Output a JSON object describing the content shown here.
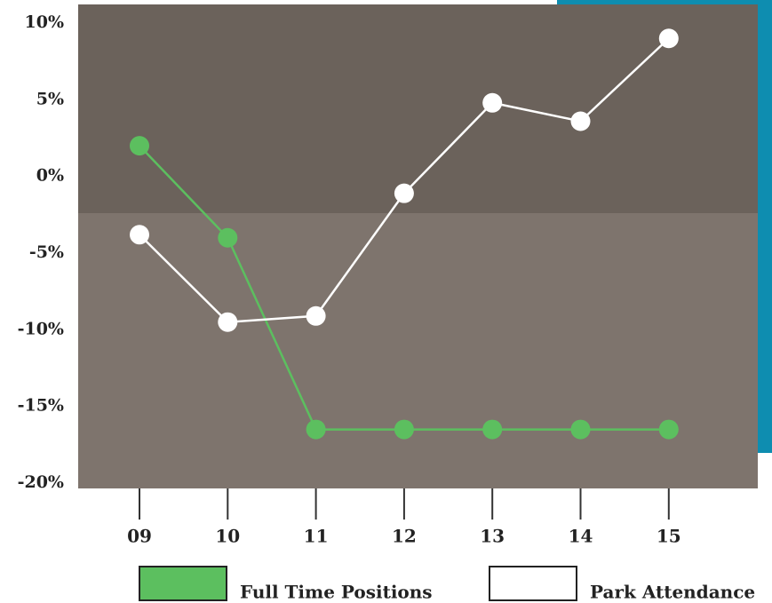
{
  "chart_data": {
    "type": "line",
    "categories": [
      "09",
      "10",
      "11",
      "12",
      "13",
      "14",
      "15"
    ],
    "series": [
      {
        "name": "Full Time Positions",
        "color": "#5cbf5f",
        "values": [
          2,
          -4,
          -16.5,
          -16.5,
          -16.5,
          -16.5,
          -16.5
        ]
      },
      {
        "name": "Park Attendance",
        "color": "#ffffff",
        "values": [
          -3.8,
          -9.5,
          -9.1,
          -1.1,
          4.8,
          3.6,
          9
        ]
      }
    ],
    "ylim": [
      -20,
      10
    ],
    "yticks": [
      {
        "value": 10,
        "label": "10%"
      },
      {
        "value": 5,
        "label": "5%"
      },
      {
        "value": 0,
        "label": "0%"
      },
      {
        "value": -5,
        "label": "-5%"
      },
      {
        "value": -10,
        "label": "-10%"
      },
      {
        "value": -15,
        "label": "-15%"
      },
      {
        "value": -20,
        "label": "-20%"
      }
    ],
    "grid": false
  }
}
